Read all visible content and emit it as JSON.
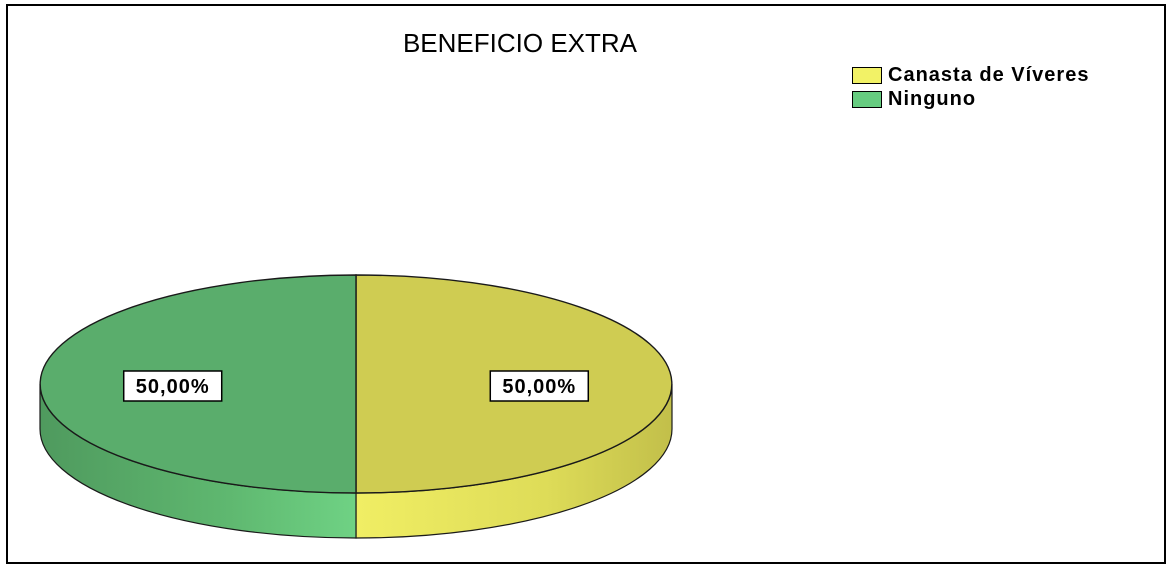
{
  "chart_data": {
    "type": "pie",
    "title": "BENEFICIO EXTRA",
    "legend_position": "top-right",
    "categories": [
      "Canasta de Víveres",
      "Ninguno"
    ],
    "values": [
      50.0,
      50.0
    ],
    "data_labels": [
      "50,00%",
      "50,00%"
    ],
    "colors": {
      "Canasta de Víveres": "#cfcc52",
      "Ninguno": "#5aad6c"
    },
    "legend_colors": {
      "Canasta de Víveres": "#f2f266",
      "Ninguno": "#66cc80"
    },
    "style": "3d"
  }
}
